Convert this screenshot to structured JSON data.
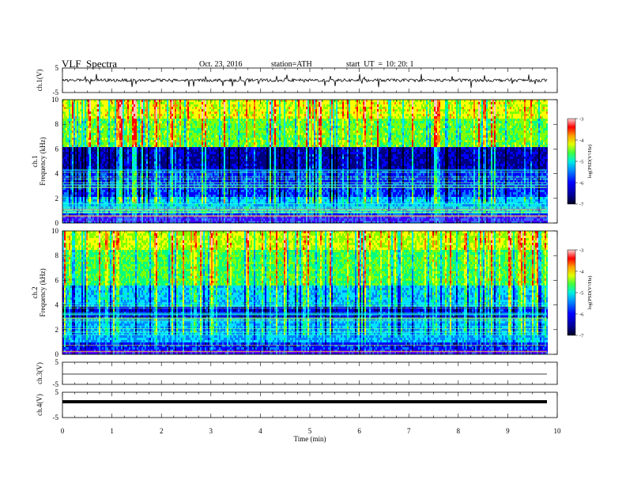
{
  "header": {
    "title": "VLF  Spectra",
    "date": "Oct. 23, 2016",
    "station": "station=ATH",
    "start_label": "start  UT  =",
    "start_value": "10: 20: 1"
  },
  "colors": {
    "spectrum_palette": [
      "#000020",
      "#000080",
      "#0000ff",
      "#0080ff",
      "#00e0ff",
      "#00ff80",
      "#80ff00",
      "#ffff00",
      "#ff8000",
      "#ff0000",
      "#ffc0c0"
    ],
    "trace": "#000000"
  },
  "chart_data": [
    {
      "type": "line",
      "panel": "ch.1",
      "ylabel": "ch.1(V)",
      "ylim": [
        -5,
        5
      ],
      "yticks": [
        "5",
        "-5"
      ],
      "xlim": [
        0,
        10
      ],
      "description_values": {
        "baseline_V": 0,
        "noise_amplitude_V": 0.6
      }
    },
    {
      "type": "heatmap",
      "panel": "ch.1",
      "ylabel_line1": "ch.1",
      "ylabel_line2": "Frequency  (kHz)",
      "ylim": [
        0,
        10
      ],
      "yticks": [
        "0",
        "2",
        "4",
        "6",
        "8",
        "10"
      ],
      "xlim": [
        0,
        10
      ],
      "colorbar": {
        "label": "log(PSD(V²/Hz)",
        "range": [
          -7,
          -3
        ],
        "ticks": [
          "-3",
          "-4",
          "-5",
          "-6",
          "-7"
        ]
      }
    },
    {
      "type": "heatmap",
      "panel": "ch.2",
      "ylabel_line1": "ch.2",
      "ylabel_line2": "Frequency  (kHz)",
      "ylim": [
        0,
        10
      ],
      "yticks": [
        "0",
        "2",
        "4",
        "6",
        "8",
        "10"
      ],
      "xlim": [
        0,
        10
      ],
      "colorbar": {
        "label": "log(PSD(V²/Hz)",
        "range": [
          -7,
          -3
        ],
        "ticks": [
          "-3",
          "-4",
          "-5",
          "-6",
          "-7"
        ]
      }
    },
    {
      "type": "line",
      "panel": "ch.3",
      "ylabel": "ch.3(V)",
      "ylim": [
        -5,
        5
      ],
      "yticks": [
        "5",
        "-5"
      ],
      "xlim": [
        0,
        10
      ],
      "description_values": {
        "baseline_V": 0
      }
    },
    {
      "type": "line",
      "panel": "ch.4",
      "ylabel": "ch.4(V)",
      "ylim": [
        -5,
        5
      ],
      "yticks": [
        "5",
        "-5"
      ],
      "xlim": [
        0,
        10
      ],
      "description_values": {
        "baseline_V": 0
      }
    }
  ],
  "x_axis": {
    "label": "Time  (min)",
    "ticks": [
      "0",
      "1",
      "2",
      "3",
      "4",
      "5",
      "6",
      "7",
      "8",
      "9",
      "10"
    ]
  }
}
